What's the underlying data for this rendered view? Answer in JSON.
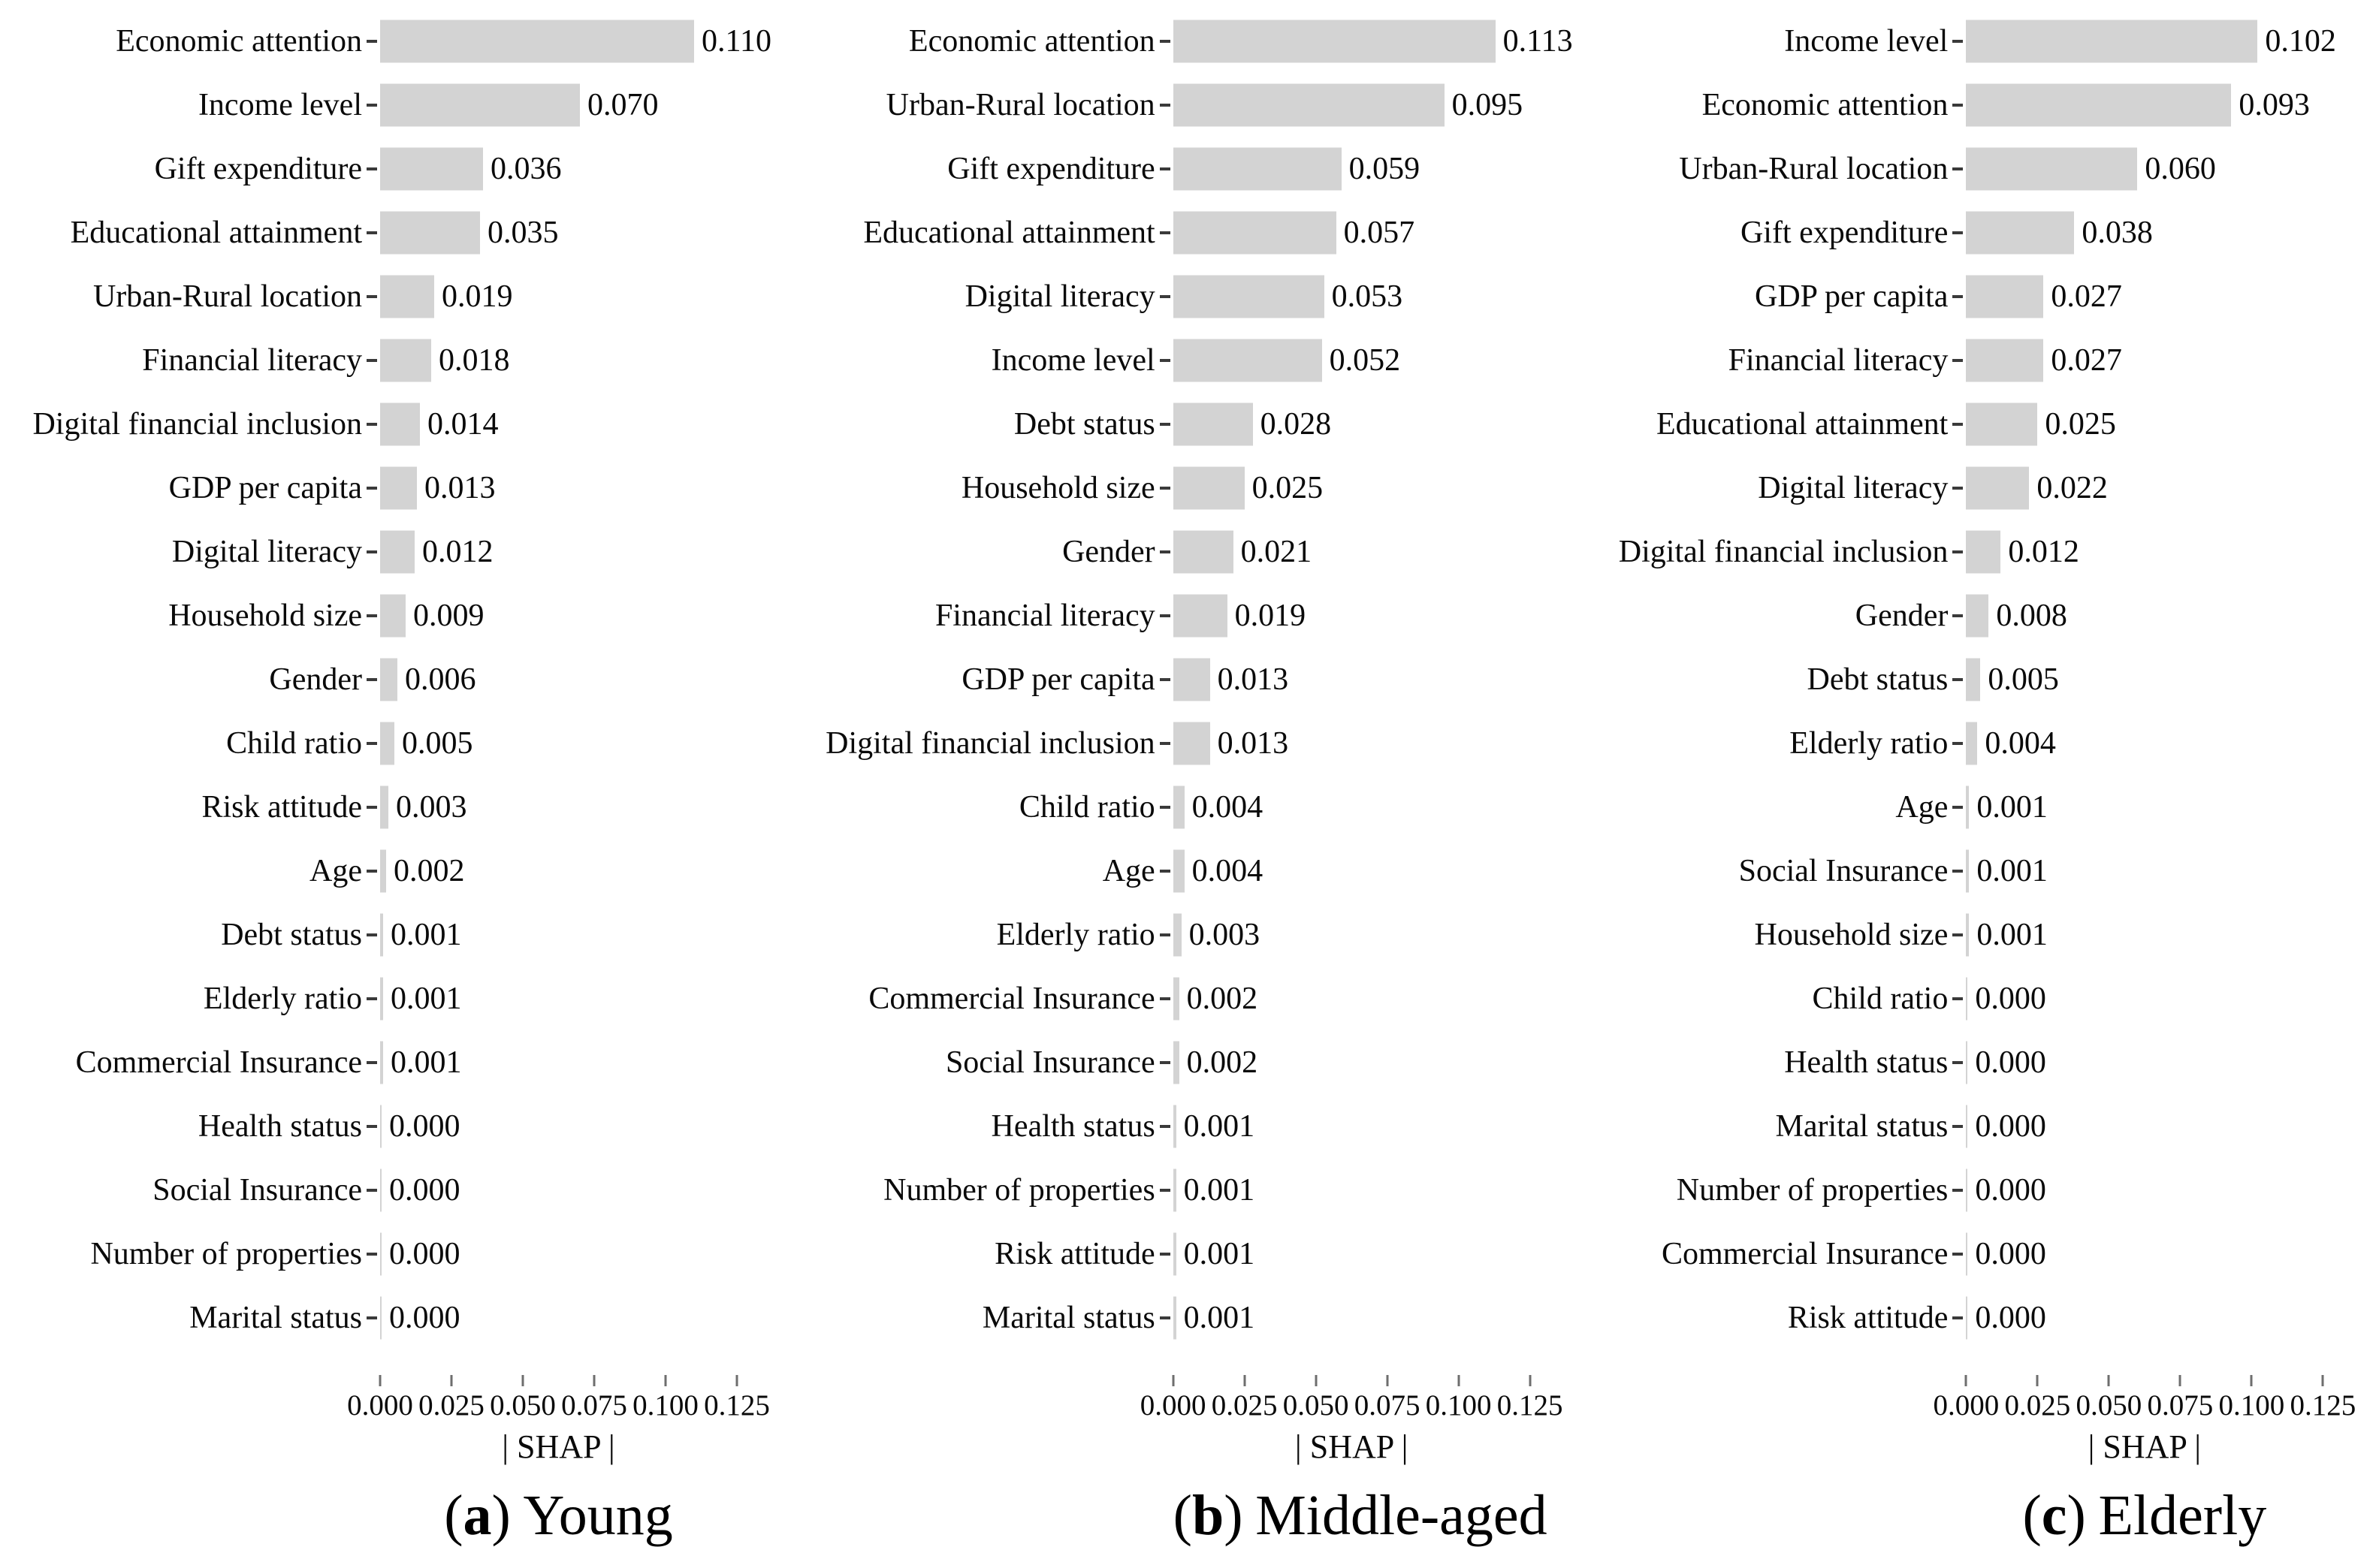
{
  "colors": {
    "bar": "#d3d3d3",
    "text": "#0a0a0a",
    "y_tick": "#3a3a3a",
    "x_tick": "#6e6e6e"
  },
  "caption_open": "(",
  "caption_close": ")",
  "x_axis": {
    "label": "| SHAP |",
    "tick_labels": [
      "0.000",
      "0.025",
      "0.050",
      "0.075",
      "0.100",
      "0.125"
    ],
    "tick_values": [
      0.0,
      0.025,
      0.05,
      0.075,
      0.1,
      0.125
    ]
  },
  "chart_data": [
    {
      "type": "bar",
      "orientation": "horizontal",
      "panel": "a",
      "title": "Young",
      "xlabel": "| SHAP |",
      "xlim": [
        0,
        0.135
      ],
      "grid": false,
      "legend": false,
      "categories": [
        "Economic attention",
        "Income level",
        "Gift expenditure",
        "Educational attainment",
        "Urban-Rural location",
        "Financial literacy",
        "Digital financial inclusion",
        "GDP per capita",
        "Digital literacy",
        "Household size",
        "Gender",
        "Child ratio",
        "Risk attitude",
        "Age",
        "Debt status",
        "Elderly ratio",
        "Commercial Insurance",
        "Health status",
        "Social Insurance",
        "Number of properties",
        "Marital status"
      ],
      "values": [
        0.11,
        0.07,
        0.036,
        0.035,
        0.019,
        0.018,
        0.014,
        0.013,
        0.012,
        0.009,
        0.006,
        0.005,
        0.003,
        0.002,
        0.001,
        0.001,
        0.001,
        0.0,
        0.0,
        0.0,
        0.0
      ]
    },
    {
      "type": "bar",
      "orientation": "horizontal",
      "panel": "b",
      "title": "Middle-aged",
      "xlabel": "| SHAP |",
      "xlim": [
        0,
        0.135
      ],
      "grid": false,
      "legend": false,
      "categories": [
        "Economic attention",
        "Urban-Rural location",
        "Gift expenditure",
        "Educational attainment",
        "Digital literacy",
        "Income level",
        "Debt status",
        "Household size",
        "Gender",
        "Financial literacy",
        "GDP per capita",
        "Digital financial inclusion",
        "Child ratio",
        "Age",
        "Elderly ratio",
        "Commercial Insurance",
        "Social Insurance",
        "Health status",
        "Number of properties",
        "Risk attitude",
        "Marital status"
      ],
      "values": [
        0.113,
        0.095,
        0.059,
        0.057,
        0.053,
        0.052,
        0.028,
        0.025,
        0.021,
        0.019,
        0.013,
        0.013,
        0.004,
        0.004,
        0.003,
        0.002,
        0.002,
        0.001,
        0.001,
        0.001,
        0.001
      ]
    },
    {
      "type": "bar",
      "orientation": "horizontal",
      "panel": "c",
      "title": "Elderly",
      "xlabel": "| SHAP |",
      "xlim": [
        0,
        0.135
      ],
      "grid": false,
      "legend": false,
      "categories": [
        "Income level",
        "Economic attention",
        "Urban-Rural location",
        "Gift expenditure",
        "GDP per capita",
        "Financial literacy",
        "Educational attainment",
        "Digital literacy",
        "Digital financial inclusion",
        "Gender",
        "Debt status",
        "Elderly ratio",
        "Age",
        "Social Insurance",
        "Household size",
        "Child ratio",
        "Health status",
        "Marital status",
        "Number of properties",
        "Commercial Insurance",
        "Risk attitude"
      ],
      "values": [
        0.102,
        0.093,
        0.06,
        0.038,
        0.027,
        0.027,
        0.025,
        0.022,
        0.012,
        0.008,
        0.005,
        0.004,
        0.001,
        0.001,
        0.001,
        0.0,
        0.0,
        0.0,
        0.0,
        0.0,
        0.0
      ]
    }
  ]
}
